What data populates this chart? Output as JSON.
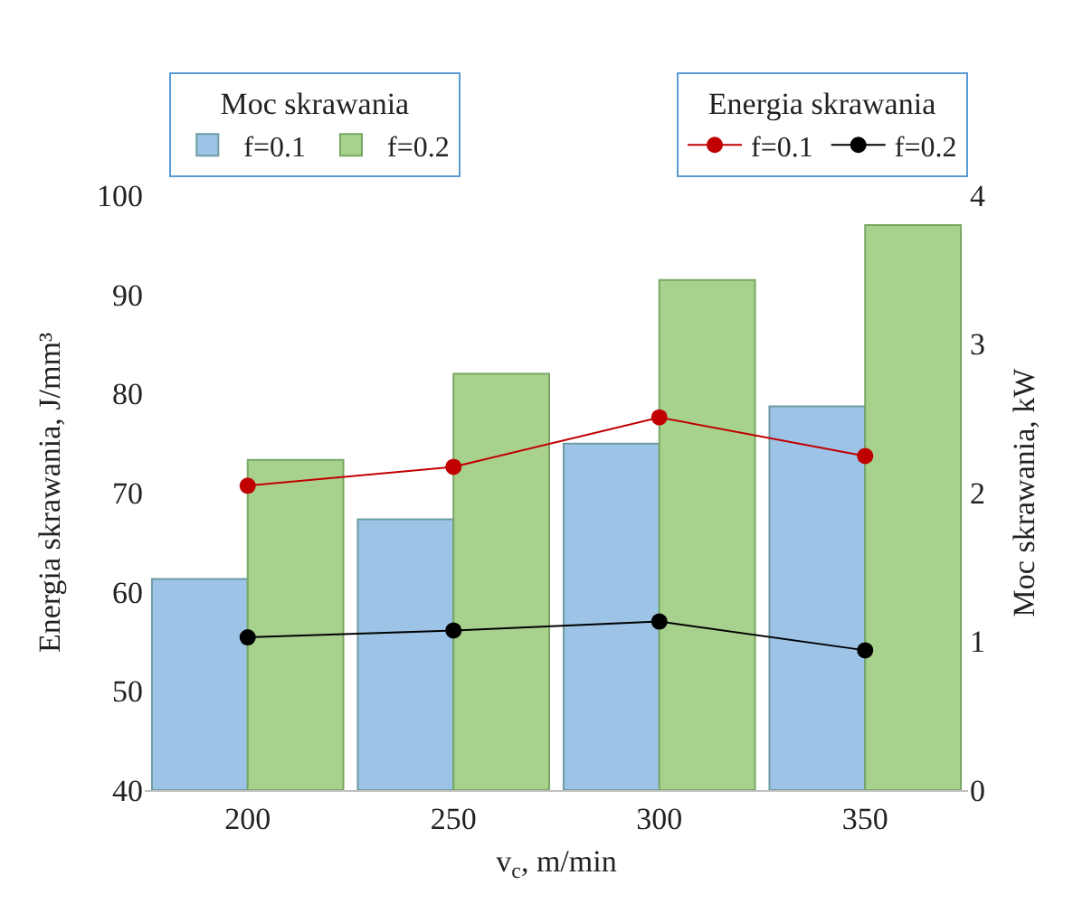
{
  "chart_data": {
    "type": "bar",
    "xlabel": "v$_{c}$, m/min",
    "ylabel": "Energia skrawania, J/mm³",
    "y2label": "Moc skrawania, kW",
    "legend_title": [
      "Moc skrawania",
      "Energia skrawania"
    ],
    "categories": [
      "200",
      "250",
      "300",
      "350"
    ],
    "series": [
      {
        "name": "f=0.1",
        "axis": "y2",
        "color": "#9dc3e6",
        "values": [
          1.42,
          1.82,
          2.33,
          2.58
        ]
      },
      {
        "name": "f=0.2",
        "axis": "y2",
        "color": "#a9d18e",
        "values": [
          2.22,
          2.8,
          3.43,
          3.8
        ]
      },
      {
        "name": "f=0.1",
        "type": "line",
        "color": "#c00000",
        "values": [
          70.7,
          72.6,
          77.6,
          73.7
        ]
      },
      {
        "name": "f=0.2",
        "type": "line",
        "color": "#000000",
        "values": [
          55.4,
          56.1,
          57.0,
          54.1
        ]
      }
    ],
    "ylim": [
      40,
      100
    ],
    "yticks": [
      40,
      50,
      60,
      70,
      80,
      90,
      100
    ],
    "y2lim": [
      0,
      4
    ],
    "y2ticks": [
      0,
      1,
      2,
      3,
      4
    ],
    "legend": "top",
    "marker": "circle",
    "line_style": "solid"
  }
}
